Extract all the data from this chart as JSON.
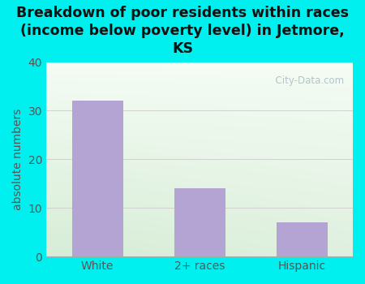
{
  "categories": [
    "White",
    "2+ races",
    "Hispanic"
  ],
  "values": [
    32,
    14,
    7
  ],
  "bar_color": "#b3a4d4",
  "title": "Breakdown of poor residents within races\n(income below poverty level) in Jetmore,\nKS",
  "ylabel": "absolute numbers",
  "ylim": [
    0,
    40
  ],
  "yticks": [
    0,
    10,
    20,
    30,
    40
  ],
  "bg_color": "#00efef",
  "plot_grad_topleft": "#e0edd8",
  "plot_grad_topright": "#f0f8f0",
  "plot_grad_bottom": "#d8ead8",
  "watermark": "  City-Data.com",
  "title_fontsize": 12.5,
  "label_fontsize": 10,
  "tick_fontsize": 10,
  "ylabel_color": "#555555",
  "tick_color": "#555555",
  "grid_color": "#cccccc"
}
